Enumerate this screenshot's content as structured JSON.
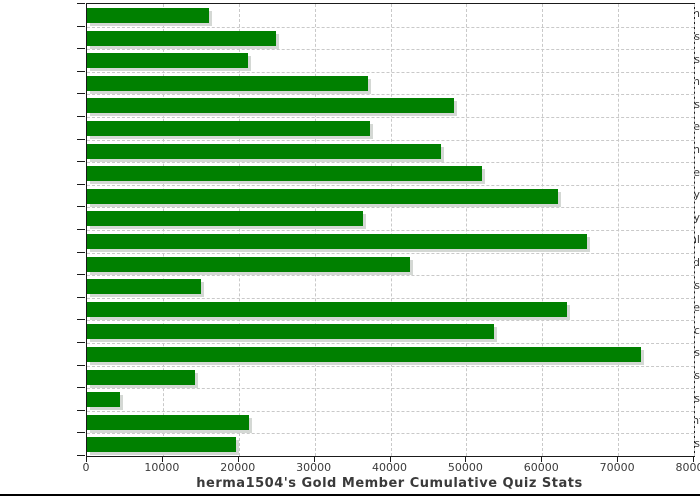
{
  "chart_data": {
    "type": "bar",
    "orientation": "horizontal",
    "title": "herma1504's Gold Member Cumulative Quiz Stats",
    "xlabel": "",
    "ylabel": "",
    "xlim": [
      0,
      80000
    ],
    "x_ticks": [
      0,
      10000,
      20000,
      30000,
      40000,
      50000,
      60000,
      70000,
      80000
    ],
    "x_tick_labels": [
      "0",
      "10000",
      "20000",
      "30000",
      "40000",
      "50000",
      "60000",
      "70000",
      "80000"
    ],
    "grid": true,
    "legend": "none",
    "bar_color": "#008000",
    "categories": [
      "Religion",
      "Hobbies",
      "Celebrities",
      "Television",
      "Humanities",
      "People",
      "For_Children",
      "Literature",
      "Geography",
      "History",
      "General",
      "World",
      "Sports",
      "Science",
      "Music",
      "Movies",
      "Brain_Teasers",
      "Video_Games",
      "Entertainment",
      "Animals"
    ],
    "values": [
      16100,
      24900,
      21200,
      37100,
      48400,
      37300,
      46700,
      52000,
      62100,
      36400,
      65900,
      42600,
      15000,
      63300,
      53600,
      73000,
      14200,
      4400,
      21300,
      19600
    ]
  },
  "colors": {
    "bar": "#008000",
    "bar_shadow": "#d4d8d4",
    "grid": "#c9c9c9",
    "axis_frame": "#1a1a1a",
    "text": "#3c3c3c",
    "background": "#ffffff",
    "bottom_rule": "#000000"
  }
}
